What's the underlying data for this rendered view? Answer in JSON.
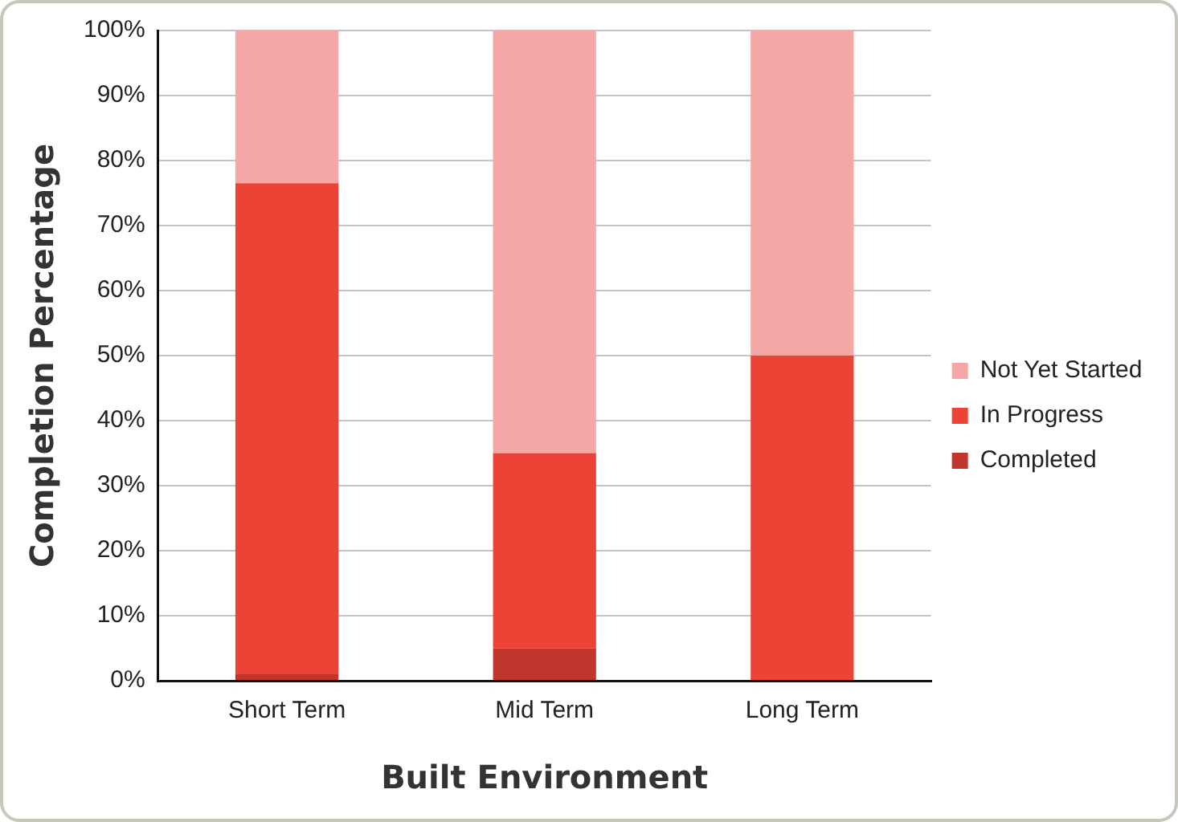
{
  "chart_data": {
    "type": "bar",
    "stacked": true,
    "xlabel": "Built Environment",
    "ylabel": "Completion Percentage",
    "categories": [
      "Short Term",
      "Mid Term",
      "Long Term"
    ],
    "series": [
      {
        "name": "Completed",
        "color": "#c1362c",
        "values": [
          1,
          5,
          0
        ]
      },
      {
        "name": "In Progress",
        "color": "#eb4335",
        "values": [
          75.5,
          30,
          50
        ]
      },
      {
        "name": "Not Yet Started",
        "color": "#f4a7a5",
        "values": [
          23.5,
          65,
          50
        ]
      }
    ],
    "ylim": [
      0,
      100
    ],
    "yticks": [
      {
        "value": 0,
        "label": "0%"
      },
      {
        "value": 10,
        "label": "10%"
      },
      {
        "value": 20,
        "label": "20%"
      },
      {
        "value": 30,
        "label": "30%"
      },
      {
        "value": 40,
        "label": "40%"
      },
      {
        "value": 50,
        "label": "50%"
      },
      {
        "value": 60,
        "label": "60%"
      },
      {
        "value": 70,
        "label": "70%"
      },
      {
        "value": 80,
        "label": "80%"
      },
      {
        "value": 90,
        "label": "90%"
      },
      {
        "value": 100,
        "label": "100%"
      }
    ],
    "grid": "y",
    "legend": "right"
  }
}
